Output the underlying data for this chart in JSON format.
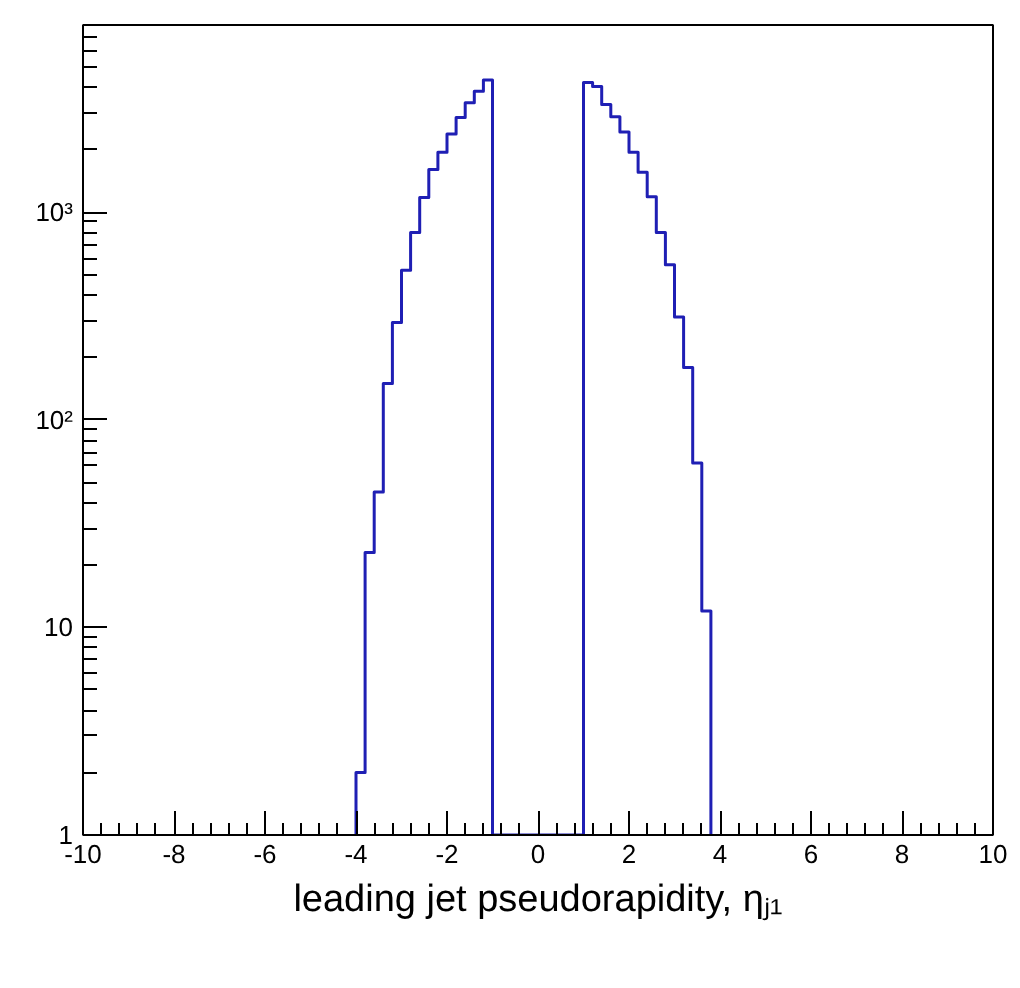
{
  "chart_data": {
    "type": "histogram",
    "xlabel": "leading jet pseudorapidity, ηⱼ₁",
    "bins": [
      -4.0,
      -3.8,
      -3.6,
      -3.4,
      -3.2,
      -3.0,
      -2.8,
      -2.6,
      -2.4,
      -2.2,
      -2.0,
      -1.8,
      -1.6,
      -1.4,
      -1.2,
      -1.0,
      -0.8,
      -0.6,
      -0.4,
      -0.2,
      0.0,
      0.2,
      0.4,
      0.6,
      0.8,
      1.0,
      1.2,
      1.4,
      1.6,
      1.8,
      2.0,
      2.2,
      2.4,
      2.6,
      2.8,
      3.0,
      3.2,
      3.4,
      3.6,
      3.8
    ],
    "values": [
      2,
      23,
      45,
      150,
      295,
      527,
      800,
      1180,
      1610,
      1950,
      2390,
      2870,
      3380,
      3840,
      4350,
      null,
      null,
      null,
      null,
      null,
      null,
      null,
      null,
      null,
      null,
      4230,
      4040,
      3310,
      2890,
      2440,
      1950,
      1560,
      1190,
      800,
      560,
      313,
      179,
      62,
      12
    ],
    "color": "#1f1fb4",
    "log": "y",
    "grid": false,
    "xlim": [
      -10,
      10
    ],
    "xticks": [
      -10,
      -8,
      -6,
      -4,
      -2,
      0,
      2,
      4,
      6,
      8,
      10
    ],
    "ylim": [
      1,
      8000
    ],
    "yticks": [
      1,
      10,
      {
        "value": 100,
        "label": "10²"
      },
      {
        "value": 1000,
        "label": "10³"
      }
    ]
  }
}
